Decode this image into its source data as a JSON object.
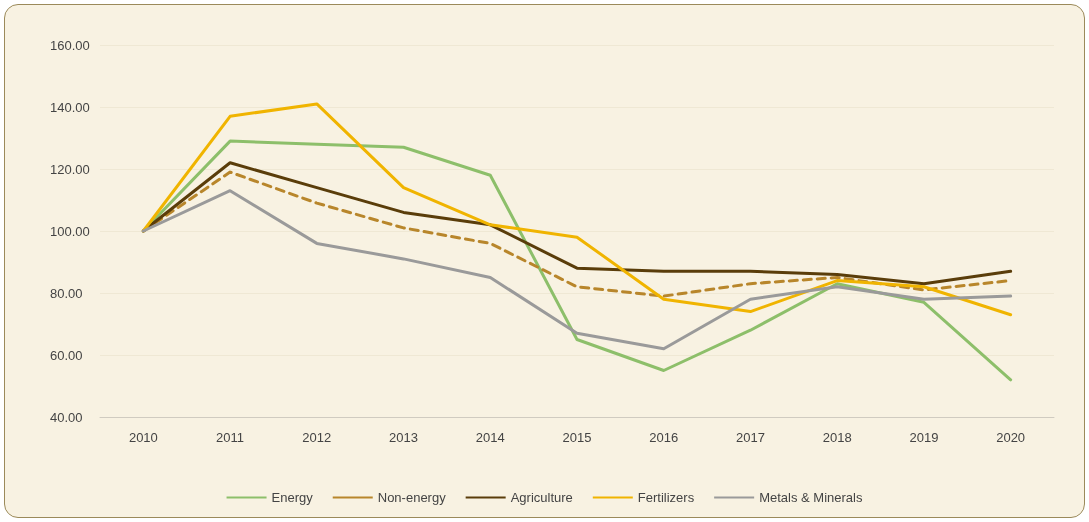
{
  "chart_data": {
    "type": "line",
    "categories": [
      "2010",
      "2011",
      "2012",
      "2013",
      "2014",
      "2015",
      "2016",
      "2017",
      "2018",
      "2019",
      "2020"
    ],
    "series": [
      {
        "name": "Energy",
        "color": "#8dbf6a",
        "values": [
          100,
          129,
          128,
          127,
          118,
          65,
          55,
          68,
          83,
          77,
          52
        ]
      },
      {
        "name": "Non-energy",
        "color": "#b8862b",
        "line_style": "dashed",
        "values": [
          100,
          119,
          109,
          101,
          96,
          82,
          79,
          83,
          85,
          81,
          84
        ]
      },
      {
        "name": "Agriculture",
        "color": "#5a3d0a",
        "values": [
          100,
          122,
          114,
          106,
          102,
          88,
          87,
          87,
          86,
          83,
          87
        ]
      },
      {
        "name": "Fertilizers",
        "color": "#f0b400",
        "values": [
          100,
          137,
          141,
          114,
          102,
          98,
          78,
          74,
          84,
          82,
          73
        ]
      },
      {
        "name": "Metals & Minerals",
        "color": "#9a9a9a",
        "values": [
          100,
          113,
          96,
          91,
          85,
          67,
          62,
          78,
          82,
          78,
          79
        ]
      }
    ],
    "ylim": [
      40,
      160
    ],
    "yticks": [
      {
        "value": 40,
        "label": "40.00"
      },
      {
        "value": 60,
        "label": "60.00"
      },
      {
        "value": 80,
        "label": "80.00"
      },
      {
        "value": 100,
        "label": "100.00"
      },
      {
        "value": 120,
        "label": "120.00"
      },
      {
        "value": 140,
        "label": "140.00"
      },
      {
        "value": 160,
        "label": "160.00"
      }
    ],
    "grid": "y",
    "legend": "bottom",
    "marker": "none",
    "line_style": "solid"
  }
}
